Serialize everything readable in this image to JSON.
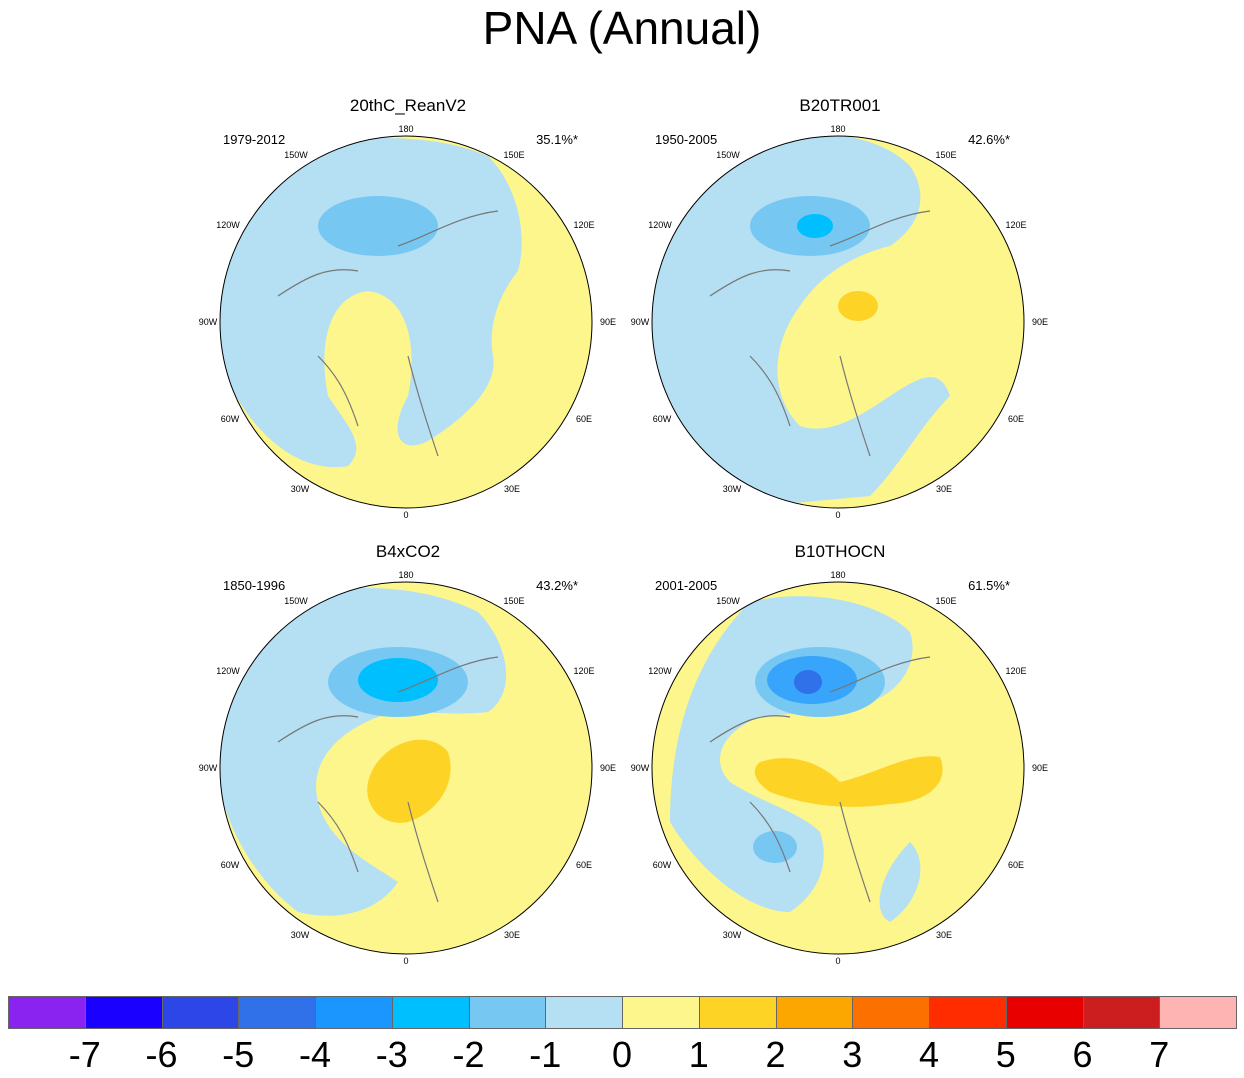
{
  "title": "PNA (Annual)",
  "panels": [
    {
      "title": "20thC_ReanV2",
      "period": "1979-2012",
      "percent": "35.1%*"
    },
    {
      "title": "B20TR001",
      "period": "1950-2005",
      "percent": "42.6%*"
    },
    {
      "title": "B4xCO2",
      "period": "1850-1996",
      "percent": "43.2%*"
    },
    {
      "title": "B10THOCN",
      "period": "2001-2005",
      "percent": "61.5%*"
    }
  ],
  "longitude_labels": {
    "top": "180",
    "150W": "150W",
    "150E": "150E",
    "120W": "120W",
    "120E": "120E",
    "90W": "90W",
    "90E": "90E",
    "60W": "60W",
    "60E": "60E",
    "30W": "30W",
    "30E": "30E",
    "bottom": "0"
  },
  "colorbar": {
    "labels": [
      "-7",
      "-6",
      "-5",
      "-4",
      "-3",
      "-2",
      "-1",
      "0",
      "1",
      "2",
      "3",
      "4",
      "5",
      "6",
      "7"
    ],
    "colors": [
      "#8a22f0",
      "#1a00ff",
      "#2c46e8",
      "#3070e8",
      "#1c96ff",
      "#00bfff",
      "#76c8f2",
      "#b5dff2",
      "#fdf68c",
      "#fdd426",
      "#fca600",
      "#fc7000",
      "#ff2c00",
      "#e80000",
      "#cc1e1e",
      "#ffb4b4"
    ]
  }
}
